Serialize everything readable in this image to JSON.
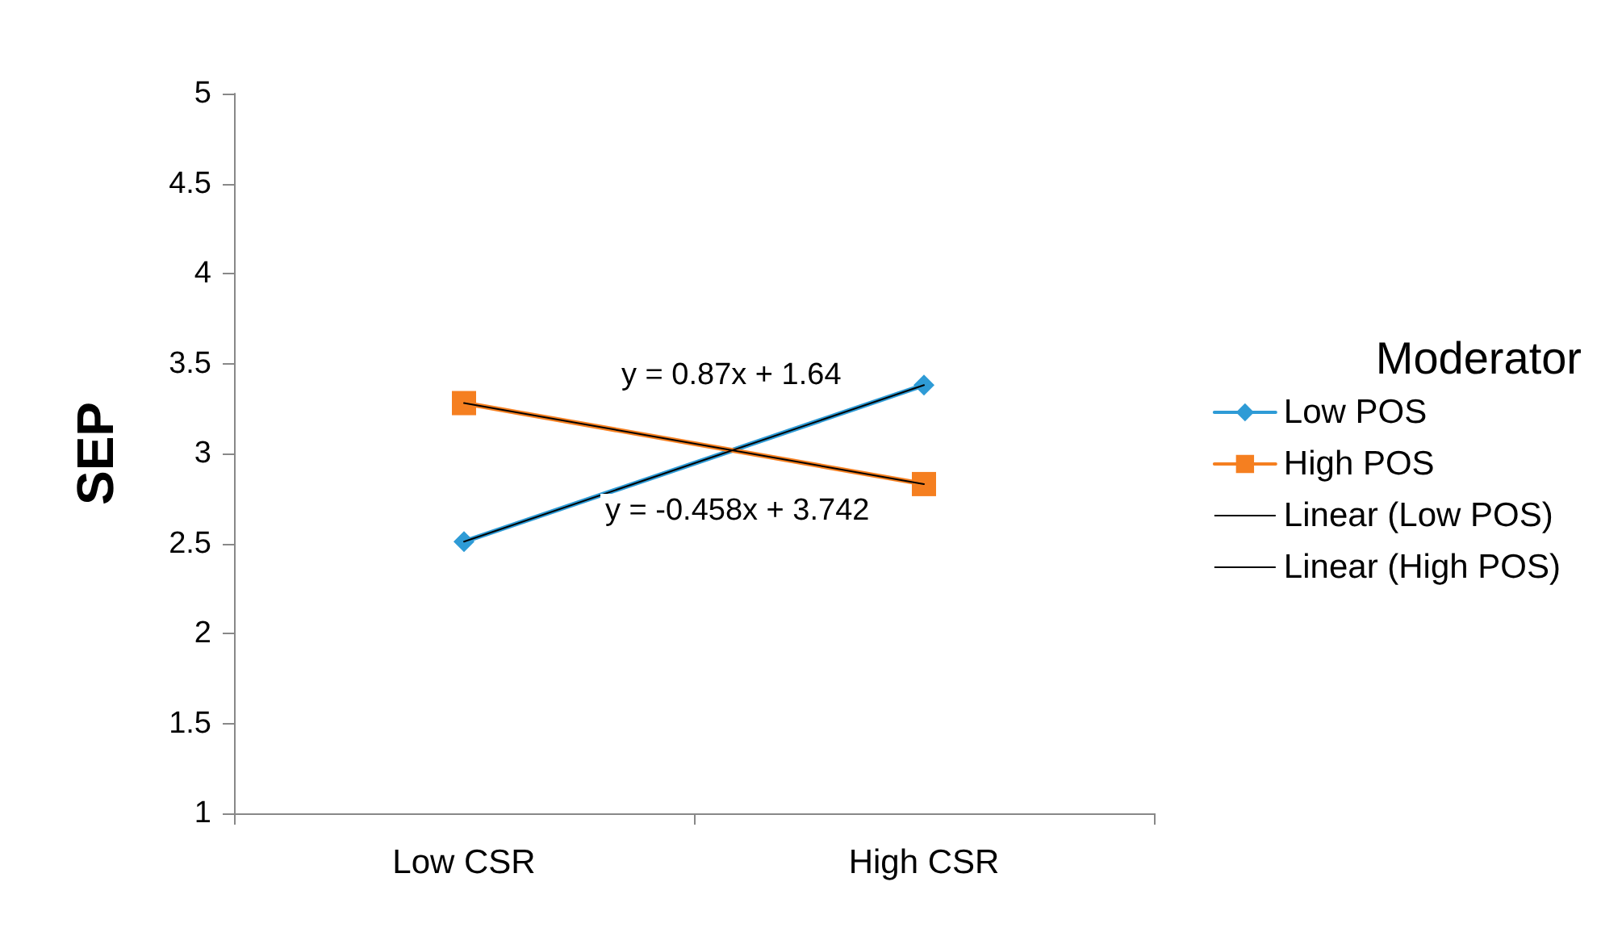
{
  "chart_data": {
    "type": "line",
    "ylabel": "SEP",
    "legend_title": "Moderator",
    "categories": [
      "Low CSR",
      "High CSR"
    ],
    "series": [
      {
        "name": "Low POS",
        "color": "#2e9bd6",
        "values": [
          2.51,
          3.38
        ],
        "marker": "diamond"
      },
      {
        "name": "High POS",
        "color": "#f57f20",
        "values": [
          3.28,
          2.83
        ],
        "marker": "square"
      },
      {
        "name": "Linear (Low POS)",
        "type": "line",
        "color": "#000000",
        "x": [
          "Low CSR",
          "High CSR"
        ],
        "values": [
          2.51,
          3.38
        ],
        "marker": "none"
      },
      {
        "name": "Linear (High POS)",
        "type": "line",
        "color": "#000000",
        "x": [
          "Low CSR",
          "High CSR"
        ],
        "values": [
          3.28,
          2.83
        ],
        "marker": "none"
      }
    ],
    "annotations": [
      "y = 0.87x + 1.64",
      "y = -0.458x + 3.742"
    ],
    "ylim": [
      1,
      5
    ],
    "yticks": [
      1,
      1.5,
      2,
      2.5,
      3,
      3.5,
      4,
      4.5,
      5
    ],
    "grid": false,
    "legend": "right",
    "line_style": "solid"
  }
}
